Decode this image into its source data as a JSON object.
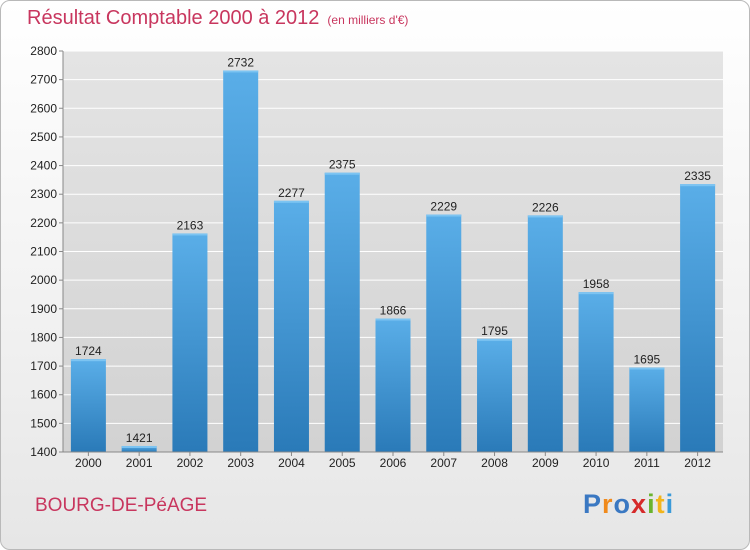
{
  "chart_data": {
    "type": "bar",
    "title": "Résultat Comptable 2000 à 2012",
    "subtitle": "(en milliers d'€)",
    "categories": [
      "2000",
      "2001",
      "2002",
      "2003",
      "2004",
      "2005",
      "2006",
      "2007",
      "2008",
      "2009",
      "2010",
      "2011",
      "2012"
    ],
    "values": [
      1724,
      1421,
      2163,
      2732,
      2277,
      2375,
      1866,
      2229,
      1795,
      2226,
      1958,
      1695,
      2335
    ],
    "ylim": [
      1400,
      2800
    ],
    "yticks": [
      1400,
      1500,
      1600,
      1700,
      1800,
      1900,
      2000,
      2100,
      2200,
      2300,
      2400,
      2500,
      2600,
      2700,
      2800
    ],
    "xlabel": "",
    "ylabel": "",
    "grid": true,
    "bar_color_top": "#5aaee8",
    "bar_color_bottom": "#2a7ab8"
  },
  "footer": {
    "commune": "BOURG-DE-PéAGE",
    "logo_letters": [
      "P",
      "r",
      "o",
      "x",
      "i",
      "t",
      "i"
    ],
    "logo_colors": [
      "#3a78c2",
      "#f08a1c",
      "#3a78c2",
      "#d62a2a",
      "#6ab42e",
      "#f2b51c",
      "#3a9ad9"
    ]
  },
  "colors": {
    "title": "#c8365e",
    "grid": "#ffffff",
    "plot_bg": "#dcdcdc"
  }
}
